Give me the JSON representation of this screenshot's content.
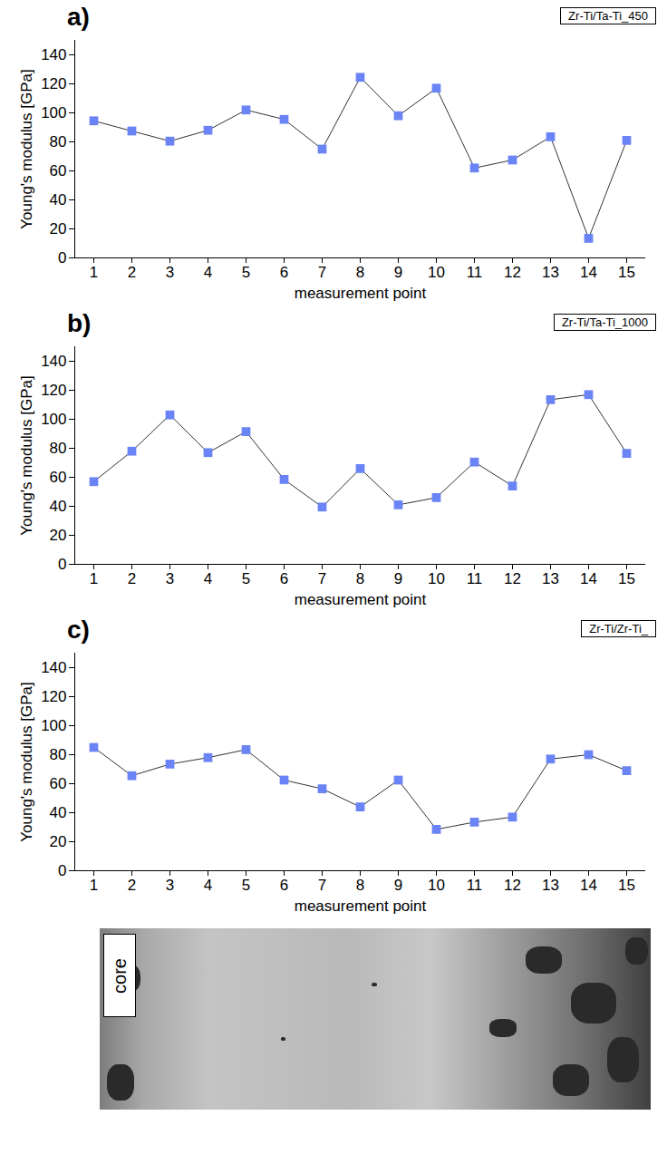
{
  "chart_data": [
    {
      "type": "line",
      "title": "a)",
      "x_label": "measurement point",
      "y_label": "Young's modulus [GPa]",
      "x": [
        1,
        2,
        3,
        4,
        5,
        6,
        7,
        8,
        9,
        10,
        11,
        12,
        13,
        14,
        15
      ],
      "series": [
        {
          "name": "Zr-Ti/Ta-Ti_450",
          "color": "#6b84f5",
          "marker": "square",
          "line_style": "solid",
          "values": [
            94.5,
            87.5,
            80.5,
            88,
            102,
            95.5,
            75,
            124.5,
            98,
            117,
            62,
            67.5,
            83.5,
            13.5,
            81
          ]
        }
      ],
      "xlim": [
        0.5,
        15.5
      ],
      "xticks": [
        1,
        2,
        3,
        4,
        5,
        6,
        7,
        8,
        9,
        10,
        11,
        12,
        13,
        14,
        15
      ],
      "ylim": [
        0,
        150
      ],
      "yticks": [
        0,
        20,
        40,
        60,
        80,
        100,
        120,
        140
      ],
      "grid": false,
      "legend": "top-right"
    },
    {
      "type": "line",
      "title": "b)",
      "x_label": "measurement point",
      "y_label": "Young's modulus [GPa]",
      "x": [
        1,
        2,
        3,
        4,
        5,
        6,
        7,
        8,
        9,
        10,
        11,
        12,
        13,
        14,
        15
      ],
      "series": [
        {
          "name": "Zr-Ti/Ta-Ti_1000",
          "color": "#6b84f5",
          "marker": "square",
          "line_style": "solid",
          "values": [
            57,
            78,
            103,
            77,
            91.5,
            58.5,
            39.5,
            66,
            41,
            46,
            70.5,
            54,
            113.5,
            117,
            76.5
          ]
        }
      ],
      "xlim": [
        0.5,
        15.5
      ],
      "xticks": [
        1,
        2,
        3,
        4,
        5,
        6,
        7,
        8,
        9,
        10,
        11,
        12,
        13,
        14,
        15
      ],
      "ylim": [
        0,
        150
      ],
      "yticks": [
        0,
        20,
        40,
        60,
        80,
        100,
        120,
        140
      ],
      "grid": false,
      "legend": "top-right"
    },
    {
      "type": "line",
      "title": "c)",
      "x_label": "measurement point",
      "y_label": "Young's modulus [GPa]",
      "x": [
        1,
        2,
        3,
        4,
        5,
        6,
        7,
        8,
        9,
        10,
        11,
        12,
        13,
        14,
        15
      ],
      "series": [
        {
          "name": "Zr-Ti/Zr-Ti_",
          "color": "#6b84f5",
          "marker": "square",
          "line_style": "solid",
          "values": [
            85,
            65.5,
            73.5,
            78,
            83.5,
            62.5,
            56.5,
            44,
            62.5,
            28.5,
            33.5,
            37,
            77,
            80,
            69
          ]
        }
      ],
      "xlim": [
        0.5,
        15.5
      ],
      "xticks": [
        1,
        2,
        3,
        4,
        5,
        6,
        7,
        8,
        9,
        10,
        11,
        12,
        13,
        14,
        15
      ],
      "ylim": [
        0,
        150
      ],
      "yticks": [
        0,
        20,
        40,
        60,
        80,
        100,
        120,
        140
      ],
      "grid": false,
      "legend": "top-right"
    }
  ],
  "micrograph": {
    "label": "core"
  }
}
